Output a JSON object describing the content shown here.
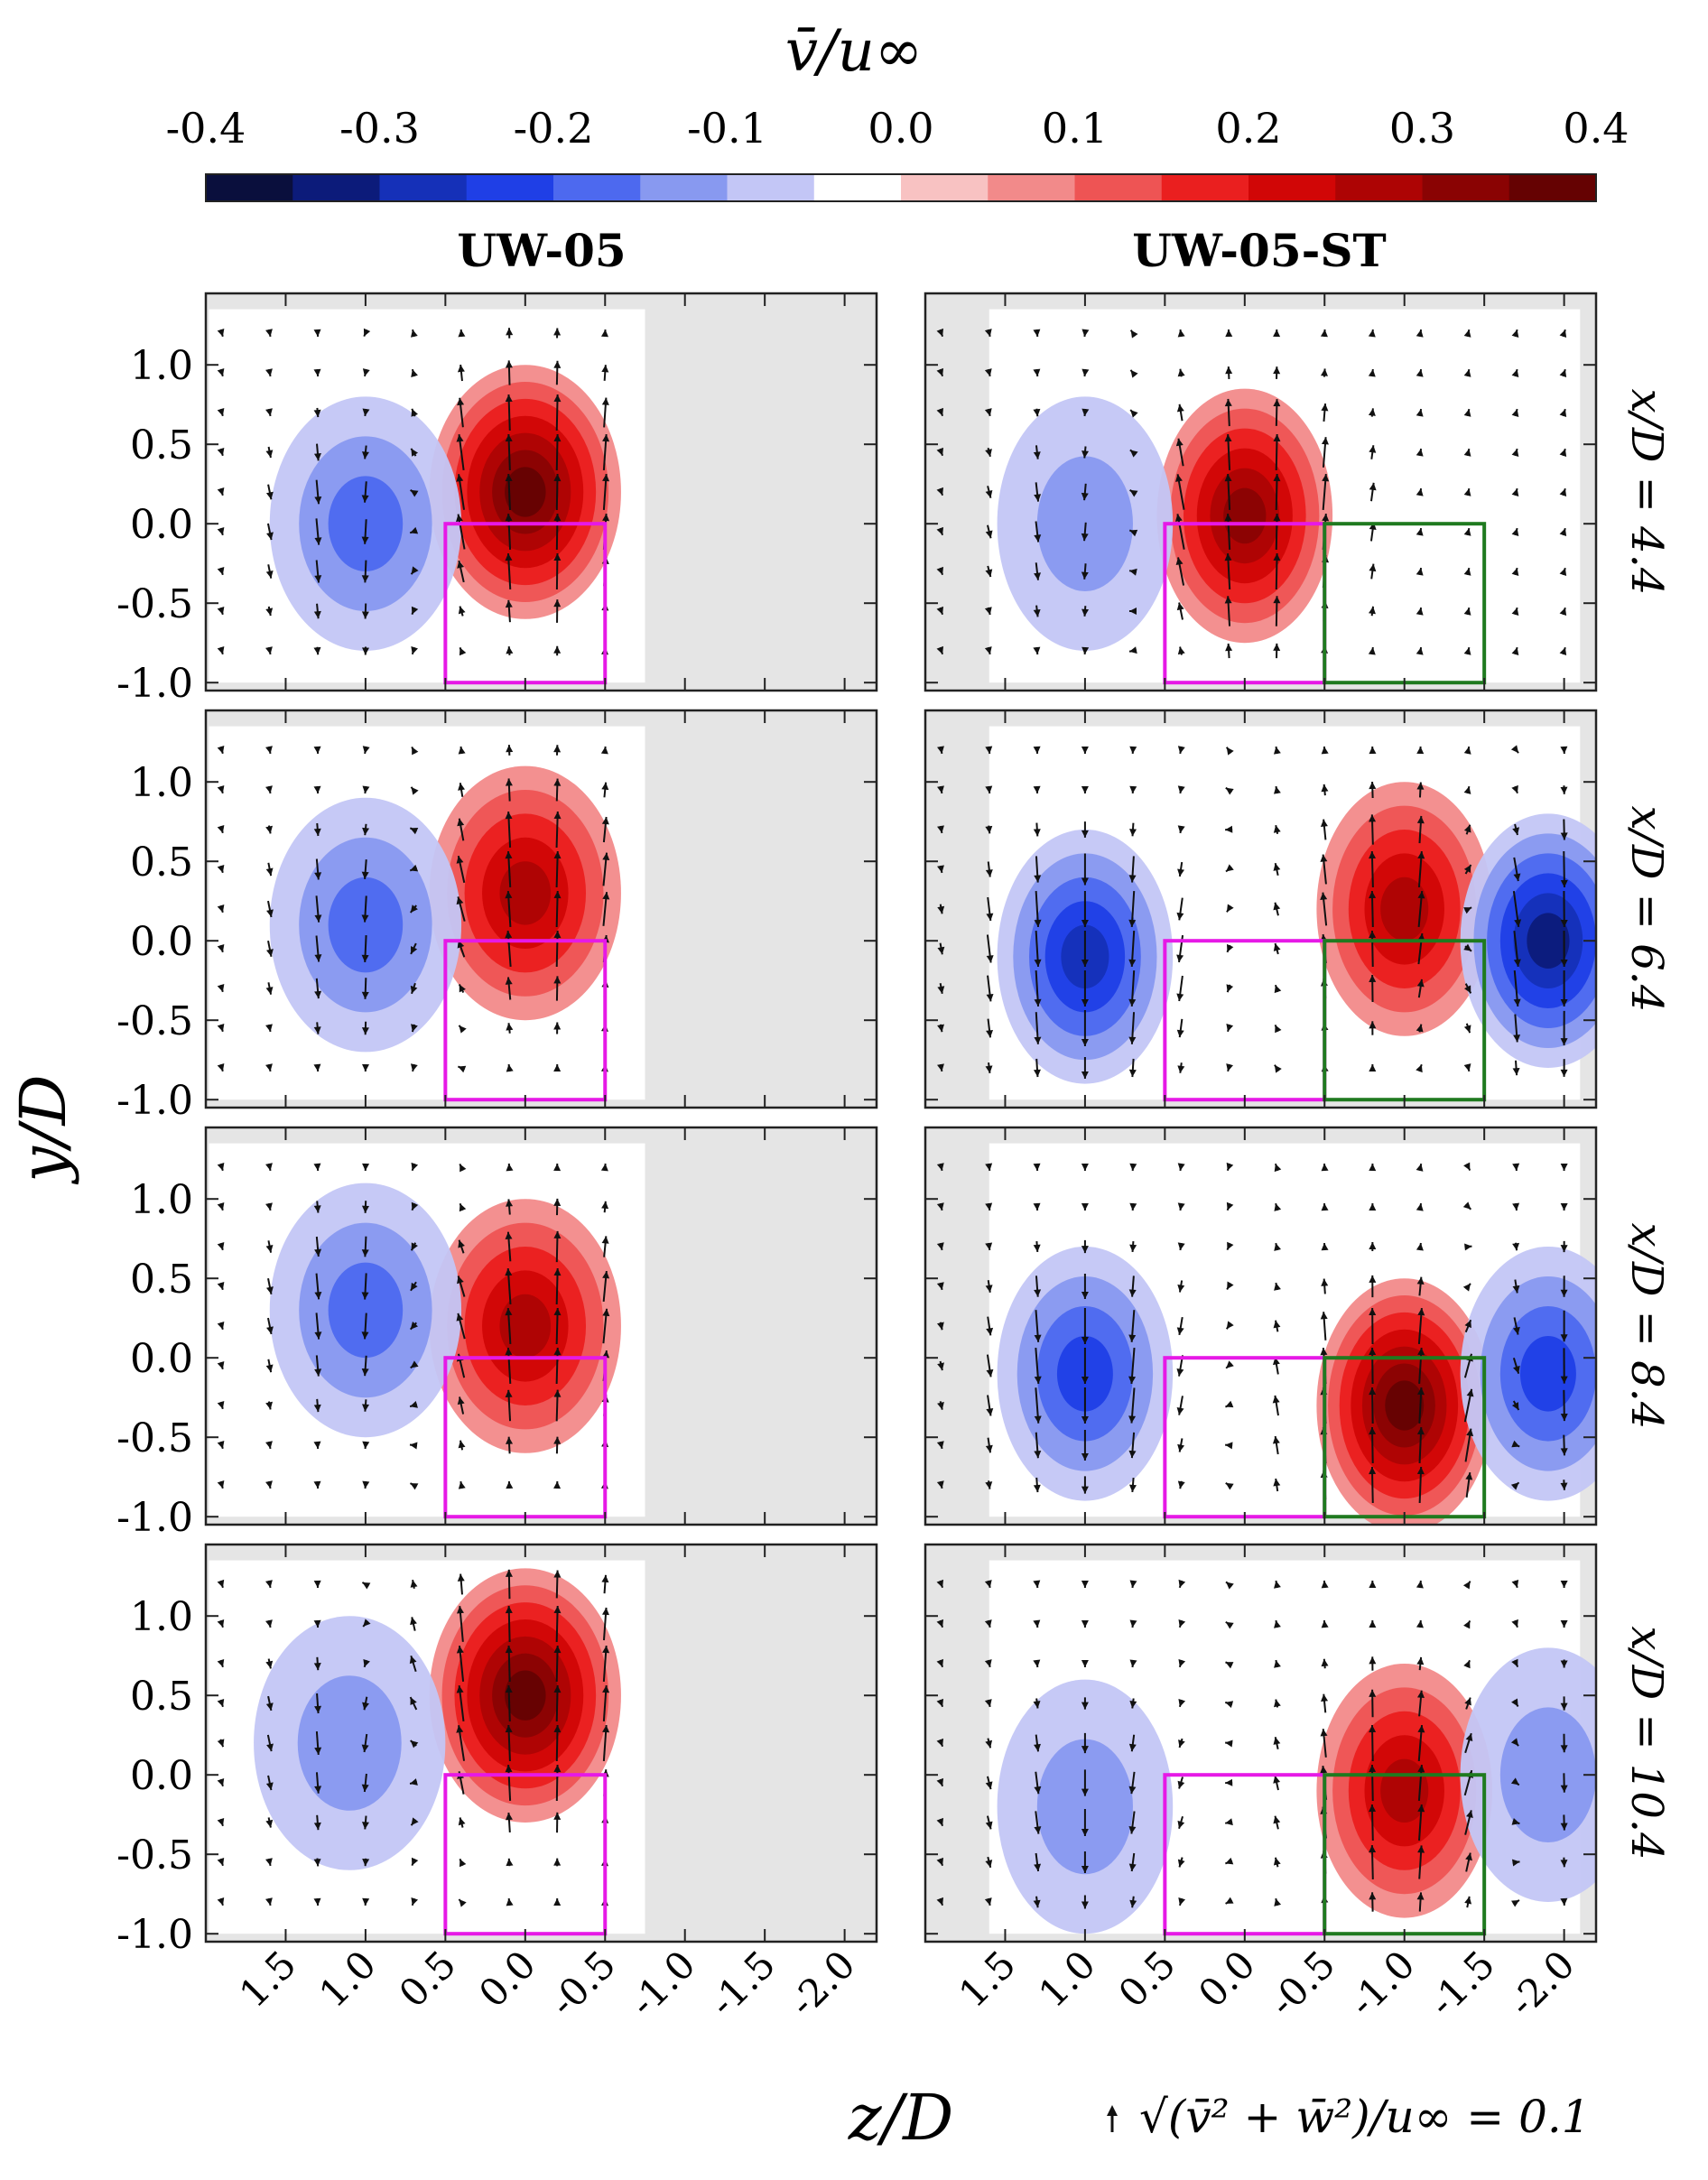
{
  "figure": {
    "colorbar_label": "v̄/u∞",
    "colorbar_ticks": [
      "-0.4",
      "-0.3",
      "-0.2",
      "-0.1",
      "0.0",
      "0.1",
      "0.2",
      "0.3",
      "0.4"
    ],
    "colorbar_values": [
      -0.4,
      -0.3,
      -0.2,
      -0.1,
      0.0,
      0.1,
      0.2,
      0.3,
      0.4
    ],
    "colorbar_colors": [
      "#0a0f3d",
      "#0c1b7a",
      "#1530b8",
      "#1f3fe6",
      "#4d69ef",
      "#8899f0",
      "#c3c6f6",
      "#ffffff",
      "#f8c2c2",
      "#f28a8a",
      "#ee5454",
      "#ea1f1f",
      "#d10606",
      "#ad0404",
      "#8a0303",
      "#650202"
    ],
    "column_titles": [
      "UW-05",
      "UW-05-ST"
    ],
    "row_labels": [
      "x/D = 4.4",
      "x/D = 6.4",
      "x/D = 8.4",
      "x/D = 10.4"
    ],
    "ylabel": "y/D",
    "xlabel": "z/D",
    "y_ticks": [
      "1.0",
      "0.5",
      "0.0",
      "-0.5",
      "-1.0"
    ],
    "x_ticks": [
      "1.5",
      "1.0",
      "0.5",
      "0.0",
      "-0.5",
      "-1.0",
      "-1.5",
      "-2.0"
    ],
    "vector_key": "√(v̄² + w̄²)/u∞ = 0.1",
    "colors": {
      "turbine_box_1": "#e619e6",
      "turbine_box_2": "#1f7a1f",
      "background": "#e5e5e5",
      "arrow": "#111111"
    }
  },
  "chart_data": [
    {
      "type": "heatmap",
      "panel": "UW-05, x/D = 4.4",
      "xlim": [
        2.0,
        -2.2
      ],
      "ylim": [
        -1.05,
        1.45
      ],
      "xlabel": "z/D",
      "ylabel": "y/D",
      "colorbar": "v̄/u∞",
      "note": "Qualitative field: positive core near z/D≈0, y/D≈0.2 (≈0.35); negative region near z/D≈1.0, y/D≈0.0 (≈-0.15)",
      "features": [
        {
          "z": 0.0,
          "y": 0.2,
          "value": 0.35
        },
        {
          "z": 1.0,
          "y": 0.0,
          "value": -0.15
        }
      ],
      "boxes": [
        {
          "z": [
            0.5,
            -0.5
          ],
          "y": [
            -1.0,
            0.0
          ],
          "color": "magenta"
        }
      ]
    },
    {
      "type": "heatmap",
      "panel": "UW-05-ST, x/D = 4.4",
      "xlim": [
        2.0,
        -2.2
      ],
      "ylim": [
        -1.05,
        1.45
      ],
      "features": [
        {
          "z": 0.0,
          "y": 0.05,
          "value": 0.3
        },
        {
          "z": 1.0,
          "y": 0.0,
          "value": -0.12
        }
      ],
      "boxes": [
        {
          "z": [
            0.5,
            -0.5
          ],
          "y": [
            -1.0,
            0.0
          ],
          "color": "magenta"
        },
        {
          "z": [
            -0.5,
            -1.5
          ],
          "y": [
            -1.0,
            0.0
          ],
          "color": "green"
        }
      ]
    },
    {
      "type": "heatmap",
      "panel": "UW-05, x/D = 6.4",
      "xlim": [
        2.0,
        -2.2
      ],
      "ylim": [
        -1.05,
        1.45
      ],
      "features": [
        {
          "z": 0.0,
          "y": 0.3,
          "value": 0.25
        },
        {
          "z": 1.0,
          "y": 0.1,
          "value": -0.15
        }
      ],
      "boxes": [
        {
          "z": [
            0.5,
            -0.5
          ],
          "y": [
            -1.0,
            0.0
          ],
          "color": "magenta"
        }
      ]
    },
    {
      "type": "heatmap",
      "panel": "UW-05-ST, x/D = 6.4",
      "xlim": [
        2.0,
        -2.2
      ],
      "ylim": [
        -1.05,
        1.45
      ],
      "features": [
        {
          "z": 1.0,
          "y": -0.1,
          "value": -0.25
        },
        {
          "z": -1.0,
          "y": 0.2,
          "value": 0.25
        },
        {
          "z": -1.9,
          "y": 0.0,
          "value": -0.3
        }
      ],
      "boxes": [
        {
          "z": [
            0.5,
            -0.5
          ],
          "y": [
            -1.0,
            0.0
          ],
          "color": "magenta"
        },
        {
          "z": [
            -0.5,
            -1.5
          ],
          "y": [
            -1.0,
            0.0
          ],
          "color": "green"
        }
      ]
    },
    {
      "type": "heatmap",
      "panel": "UW-05, x/D = 8.4",
      "xlim": [
        2.0,
        -2.2
      ],
      "ylim": [
        -1.05,
        1.45
      ],
      "features": [
        {
          "z": 0.0,
          "y": 0.2,
          "value": 0.25
        },
        {
          "z": 1.0,
          "y": 0.3,
          "value": -0.15
        }
      ],
      "boxes": [
        {
          "z": [
            0.5,
            -0.5
          ],
          "y": [
            -1.0,
            0.0
          ],
          "color": "magenta"
        }
      ]
    },
    {
      "type": "heatmap",
      "panel": "UW-05-ST, x/D = 8.4",
      "xlim": [
        2.0,
        -2.2
      ],
      "ylim": [
        -1.05,
        1.45
      ],
      "features": [
        {
          "z": 1.0,
          "y": -0.1,
          "value": -0.2
        },
        {
          "z": -1.0,
          "y": -0.3,
          "value": 0.35
        },
        {
          "z": -1.9,
          "y": -0.1,
          "value": -0.2
        }
      ],
      "boxes": [
        {
          "z": [
            0.5,
            -0.5
          ],
          "y": [
            -1.0,
            0.0
          ],
          "color": "magenta"
        },
        {
          "z": [
            -0.5,
            -1.5
          ],
          "y": [
            -1.0,
            0.0
          ],
          "color": "green"
        }
      ]
    },
    {
      "type": "heatmap",
      "panel": "UW-05, x/D = 10.4",
      "xlim": [
        2.0,
        -2.2
      ],
      "ylim": [
        -1.05,
        1.45
      ],
      "features": [
        {
          "z": 0.0,
          "y": 0.5,
          "value": 0.35
        },
        {
          "z": 1.1,
          "y": 0.2,
          "value": -0.12
        }
      ],
      "boxes": [
        {
          "z": [
            0.5,
            -0.5
          ],
          "y": [
            -1.0,
            0.0
          ],
          "color": "magenta"
        }
      ]
    },
    {
      "type": "heatmap",
      "panel": "UW-05-ST, x/D = 10.4",
      "xlim": [
        2.0,
        -2.2
      ],
      "ylim": [
        -1.05,
        1.45
      ],
      "features": [
        {
          "z": -1.0,
          "y": -0.1,
          "value": 0.25
        },
        {
          "z": 1.0,
          "y": -0.2,
          "value": -0.12
        },
        {
          "z": -1.9,
          "y": 0.0,
          "value": -0.12
        }
      ],
      "boxes": [
        {
          "z": [
            0.5,
            -0.5
          ],
          "y": [
            -1.0,
            0.0
          ],
          "color": "magenta"
        },
        {
          "z": [
            -0.5,
            -1.5
          ],
          "y": [
            -1.0,
            0.0
          ],
          "color": "green"
        }
      ]
    }
  ]
}
